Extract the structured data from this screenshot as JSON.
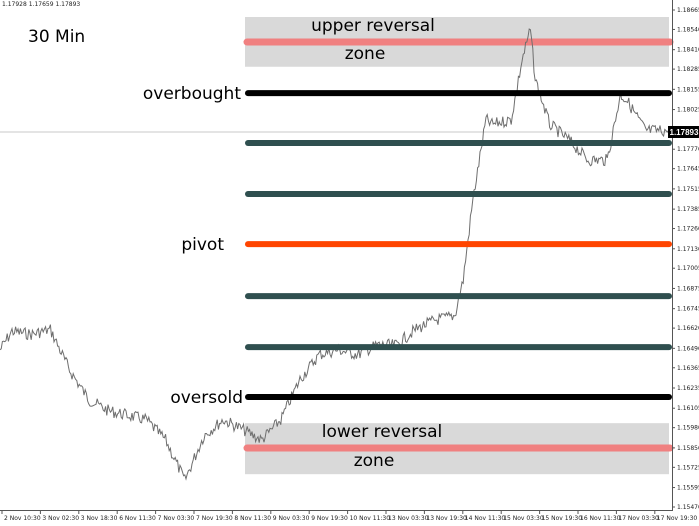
{
  "header": {
    "ohlc_text": "1.17928 1.17659 1.17893"
  },
  "chart_data": {
    "type": "line",
    "title": "30 Min",
    "timeframe_label": "30 Min",
    "y_range": [
      1.1547,
      1.18665
    ],
    "current_price": "1.17893",
    "grid": false,
    "y_ticks": [
      "1.18665",
      "1.18540",
      "1.18410",
      "1.18285",
      "1.18155",
      "1.18025",
      "1.17770",
      "1.17645",
      "1.17515",
      "1.17385",
      "1.17260",
      "1.17130",
      "1.17005",
      "1.16875",
      "1.16745",
      "1.16620",
      "1.16490",
      "1.16365",
      "1.16235",
      "1.16105",
      "1.15980",
      "1.15850",
      "1.15725",
      "1.15595",
      "1.15470"
    ],
    "x_ticks": [
      "2 Nov 10:30",
      "3 Nov 02:30",
      "3 Nov 18:30",
      "6 Nov 11:30",
      "7 Nov 03:30",
      "7 Nov 19:30",
      "8 Nov 11:30",
      "9 Nov 03:30",
      "9 Nov 19:30",
      "10 Nov 11:30",
      "13 Nov 03:30",
      "13 Nov 19:30",
      "14 Nov 11:30",
      "15 Nov 03:30",
      "15 Nov 19:30",
      "16 Nov 11:30",
      "17 Nov 03:30",
      "17 Nov 19:30"
    ],
    "series": [
      {
        "points": [
          [
            "2 Nov 05:30",
            1.1648
          ],
          [
            "2 Nov 10:30",
            1.166
          ],
          [
            "2 Nov 18:30",
            1.1658
          ],
          [
            "3 Nov 02:30",
            1.1661
          ],
          [
            "3 Nov 10:30",
            1.1635
          ],
          [
            "3 Nov 18:30",
            1.1616
          ],
          [
            "5 Nov 03:00",
            1.1609
          ],
          [
            "6 Nov 11:30",
            1.1606
          ],
          [
            "6 Nov 19:30",
            1.1603
          ],
          [
            "7 Nov 03:30",
            1.159
          ],
          [
            "7 Nov 11:30",
            1.1564
          ],
          [
            "7 Nov 19:30",
            1.1593
          ],
          [
            "8 Nov 03:30",
            1.1603
          ],
          [
            "8 Nov 11:30",
            1.1597
          ],
          [
            "8 Nov 19:30",
            1.159
          ],
          [
            "9 Nov 03:30",
            1.1603
          ],
          [
            "9 Nov 11:30",
            1.1629
          ],
          [
            "9 Nov 19:30",
            1.1645
          ],
          [
            "10 Nov 03:30",
            1.1648
          ],
          [
            "10 Nov 11:30",
            1.1645
          ],
          [
            "11 Nov 19:30",
            1.1651
          ],
          [
            "13 Nov 03:30",
            1.1651
          ],
          [
            "13 Nov 11:30",
            1.1661
          ],
          [
            "13 Nov 19:30",
            1.1667
          ],
          [
            "14 Nov 04:00",
            1.167
          ],
          [
            "14 Nov 07:30",
            1.1693
          ],
          [
            "14 Nov 11:30",
            1.1744
          ],
          [
            "14 Nov 17:00",
            1.1796
          ],
          [
            "14 Nov 19:30",
            1.1793
          ],
          [
            "15 Nov 03:30",
            1.1796
          ],
          [
            "15 Nov 08:00",
            1.1834
          ],
          [
            "15 Nov 11:30",
            1.1854
          ],
          [
            "15 Nov 13:30",
            1.1822
          ],
          [
            "15 Nov 19:30",
            1.1793
          ],
          [
            "16 Nov 03:30",
            1.1783
          ],
          [
            "16 Nov 11:30",
            1.177
          ],
          [
            "16 Nov 19:30",
            1.177
          ],
          [
            "17 Nov 01:00",
            1.1812
          ],
          [
            "17 Nov 03:30",
            1.1809
          ],
          [
            "17 Nov 11:30",
            1.1789
          ],
          [
            "17 Nov 21:00",
            1.1789
          ]
        ]
      }
    ],
    "zones": [
      {
        "name": "upper-reversal-zone",
        "top": 1.1862,
        "bottom": 1.183,
        "label_line1": "upper reversal",
        "label_line2": "zone",
        "color": "#d9d9d9",
        "line_price": 1.18459,
        "line_color": "#f08080"
      },
      {
        "name": "lower-reversal-zone",
        "top": 1.16009,
        "bottom": 1.15681,
        "label_line1": "lower reversal",
        "label_line2": "zone",
        "color": "#d9d9d9",
        "line_price": 1.15849,
        "line_color": "#f08080"
      }
    ],
    "levels": [
      {
        "name": "overbought",
        "price": 1.18131,
        "color": "#000000",
        "label": "overbought"
      },
      {
        "name": "level-r3",
        "price": 1.1781,
        "color": "#2f4f4f",
        "label": ""
      },
      {
        "name": "level-r2",
        "price": 1.17482,
        "color": "#2f4f4f",
        "label": ""
      },
      {
        "name": "pivot",
        "price": 1.1716,
        "color": "#ff4500",
        "label": "pivot"
      },
      {
        "name": "level-s2",
        "price": 1.16826,
        "color": "#2f4f4f",
        "label": ""
      },
      {
        "name": "level-s3",
        "price": 1.16498,
        "color": "#2f4f4f",
        "label": ""
      },
      {
        "name": "oversold",
        "price": 1.16177,
        "color": "#000000",
        "label": "oversold"
      }
    ]
  }
}
